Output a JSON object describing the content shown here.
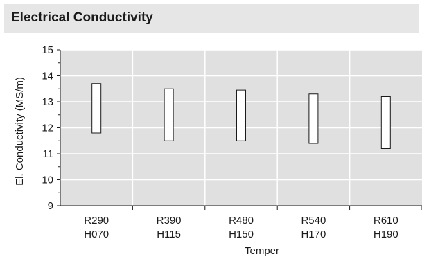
{
  "title": "Electrical Conductivity",
  "chart_data": {
    "type": "range-bar",
    "title": "Electrical Conductivity",
    "xlabel": "Temper",
    "ylabel": "El. Conductivity (MS/m)",
    "ylim": [
      9,
      15
    ],
    "yticks": [
      9,
      10,
      11,
      12,
      13,
      14,
      15
    ],
    "grid": true,
    "colors": {
      "plot_bg": "#e0e0e0",
      "grid": "#ffffff",
      "bar_fill": "#ffffff",
      "bar_stroke": "#1a1a1a"
    },
    "categories": [
      {
        "line1": "R290",
        "line2": "H070",
        "low": 11.8,
        "high": 13.7
      },
      {
        "line1": "R390",
        "line2": "H115",
        "low": 11.5,
        "high": 13.5
      },
      {
        "line1": "R480",
        "line2": "H150",
        "low": 11.5,
        "high": 13.45
      },
      {
        "line1": "R540",
        "line2": "H170",
        "low": 11.4,
        "high": 13.3
      },
      {
        "line1": "R610",
        "line2": "H190",
        "low": 11.2,
        "high": 13.2
      }
    ]
  }
}
